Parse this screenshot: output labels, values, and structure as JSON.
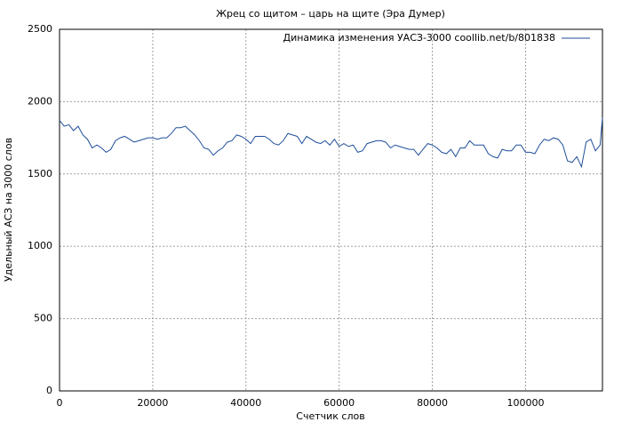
{
  "chart_data": {
    "type": "line",
    "title": "Жрец со щитом – царь на щите (Эра Думер)",
    "x_label": "Счетчик слов",
    "y_label": "Удельный АСЗ на 3000 слов",
    "x": [
      0,
      1000,
      2000,
      3000,
      4000,
      5000,
      6000,
      7000,
      8000,
      9000,
      10000,
      11000,
      12000,
      13000,
      14000,
      15000,
      16000,
      17000,
      18000,
      19000,
      20000,
      21000,
      22000,
      23000,
      24000,
      25000,
      26000,
      27000,
      28000,
      29000,
      30000,
      31000,
      32000,
      33000,
      34000,
      35000,
      36000,
      37000,
      38000,
      39000,
      40000,
      41000,
      42000,
      43000,
      44000,
      45000,
      46000,
      47000,
      48000,
      49000,
      50000,
      51000,
      52000,
      53000,
      54000,
      55000,
      56000,
      57000,
      58000,
      59000,
      60000,
      61000,
      62000,
      63000,
      64000,
      65000,
      66000,
      67000,
      68000,
      69000,
      70000,
      71000,
      72000,
      73000,
      74000,
      75000,
      76000,
      77000,
      78000,
      79000,
      80000,
      81000,
      82000,
      83000,
      84000,
      85000,
      86000,
      87000,
      88000,
      89000,
      90000,
      91000,
      92000,
      93000,
      94000,
      95000,
      96000,
      97000,
      98000,
      99000,
      100000,
      101000,
      102000,
      103000,
      104000,
      105000,
      106000,
      107000,
      108000,
      109000,
      110000,
      111000,
      112000,
      113000,
      114000,
      115000,
      116000,
      116500
    ],
    "series": [
      {
        "name": "Динамика изменения УАСЗ-3000 coollib.net/b/801838",
        "color": "#1f4e9a",
        "values": [
          1870,
          1830,
          1840,
          1800,
          1830,
          1770,
          1740,
          1680,
          1700,
          1680,
          1650,
          1670,
          1730,
          1750,
          1760,
          1740,
          1720,
          1730,
          1740,
          1750,
          1750,
          1740,
          1750,
          1750,
          1780,
          1820,
          1820,
          1830,
          1800,
          1770,
          1730,
          1680,
          1670,
          1630,
          1660,
          1680,
          1720,
          1730,
          1770,
          1760,
          1740,
          1710,
          1760,
          1760,
          1760,
          1740,
          1710,
          1700,
          1730,
          1780,
          1770,
          1760,
          1710,
          1760,
          1740,
          1720,
          1710,
          1730,
          1700,
          1740,
          1690,
          1710,
          1690,
          1700,
          1650,
          1660,
          1710,
          1720,
          1730,
          1730,
          1720,
          1680,
          1700,
          1690,
          1680,
          1670,
          1670,
          1630,
          1670,
          1710,
          1700,
          1680,
          1650,
          1640,
          1670,
          1620,
          1680,
          1680,
          1730,
          1700,
          1700,
          1700,
          1640,
          1620,
          1610,
          1670,
          1660,
          1660,
          1700,
          1700,
          1650,
          1650,
          1640,
          1700,
          1740,
          1730,
          1750,
          1740,
          1700,
          1590,
          1580,
          1620,
          1550,
          1720,
          1740,
          1660,
          1700,
          1890
        ]
      }
    ],
    "xlim": [
      0,
      116500
    ],
    "ylim": [
      0,
      2500
    ],
    "xticks": [
      0,
      20000,
      40000,
      60000,
      80000,
      100000
    ],
    "yticks": [
      0,
      500,
      1000,
      1500,
      2000,
      2500
    ],
    "grid": true,
    "legend": "upper right"
  }
}
